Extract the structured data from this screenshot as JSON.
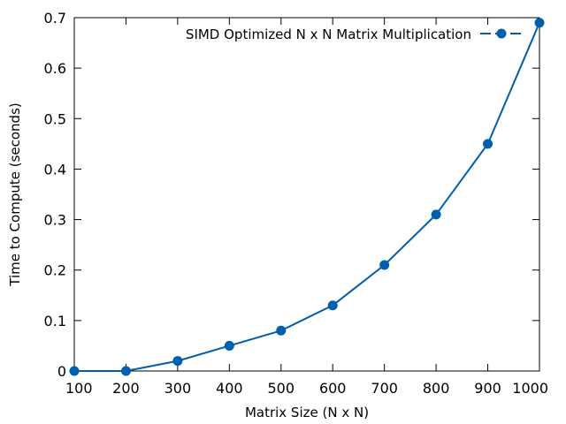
{
  "chart_data": {
    "type": "line",
    "title": "",
    "xlabel": "Matrix Size (N x N)",
    "ylabel": "Time to Compute (seconds)",
    "xlim": [
      100,
      1000
    ],
    "ylim": [
      0,
      0.7
    ],
    "x_ticks": [
      "100",
      "200",
      "300",
      "400",
      "500",
      "600",
      "700",
      "800",
      "900",
      "1000"
    ],
    "y_ticks": [
      "0",
      "0.1",
      "0.2",
      "0.3",
      "0.4",
      "0.5",
      "0.6",
      "0.7"
    ],
    "grid": false,
    "legend_position": "top-right",
    "series": [
      {
        "name": "SIMD Optimized N x N Matrix Multiplication",
        "color": "#005fad",
        "marker": "circle",
        "x": [
          100,
          200,
          300,
          400,
          500,
          600,
          700,
          800,
          900,
          1000
        ],
        "y": [
          0,
          0,
          0.02,
          0.05,
          0.08,
          0.13,
          0.21,
          0.31,
          0.45,
          0.69
        ]
      }
    ]
  }
}
